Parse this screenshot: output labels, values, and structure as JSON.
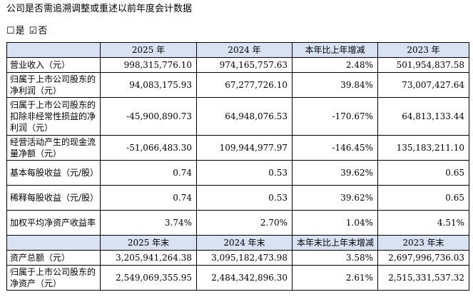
{
  "question": "公司是否需追溯调整或重述以前年度会计数据",
  "options": [
    {
      "box": "☐",
      "label": "是"
    },
    {
      "box": "☑",
      "label": "否"
    }
  ],
  "table": {
    "header1": [
      "",
      "2025 年",
      "2024 年",
      "本年比上年增减",
      "2023 年"
    ],
    "rows1": [
      {
        "label": "营业收入（元）",
        "values": [
          "998,315,776.10",
          "974,165,757.63",
          "2.48%",
          "501,954,837.58"
        ]
      },
      {
        "label": "归属于上市公司股东的净利润（元）",
        "values": [
          "94,083,175.93",
          "67,277,726.10",
          "39.84%",
          "73,007,427.64"
        ]
      },
      {
        "label": "归属于上市公司股东的扣除非经常性损益的净利润（元）",
        "values": [
          "-45,900,890.73",
          "64,948,076.53",
          "-170.67%",
          "64,813,133.44"
        ]
      },
      {
        "label": "经营活动产生的现金流量净额（元）",
        "values": [
          "-51,066,483.30",
          "109,944,977.97",
          "-146.45%",
          "135,183,211.10"
        ]
      },
      {
        "label": "基本每股收益（元/股）",
        "values": [
          "0.74",
          "0.53",
          "39.62%",
          "0.65"
        ]
      },
      {
        "label": "稀释每股收益（元/股）",
        "values": [
          "0.74",
          "0.53",
          "39.62%",
          "0.65"
        ]
      },
      {
        "label": "加权平均净资产收益率",
        "values": [
          "3.74%",
          "2.70%",
          "1.04%",
          "4.51%"
        ]
      }
    ],
    "header2": [
      "",
      "2025 年末",
      "2024 年末",
      "本年末比上年末增减",
      "2023 年末"
    ],
    "rows2": [
      {
        "label": "资产总额（元）",
        "values": [
          "3,205,941,264.38",
          "3,095,182,473.98",
          "3.58%",
          "2,697,996,736.03"
        ]
      },
      {
        "label": "归属于上市公司股东的净资产（元）",
        "values": [
          "2,549,069,355.95",
          "2,484,342,896.30",
          "2.61%",
          "2,515,331,537.32"
        ]
      }
    ]
  }
}
